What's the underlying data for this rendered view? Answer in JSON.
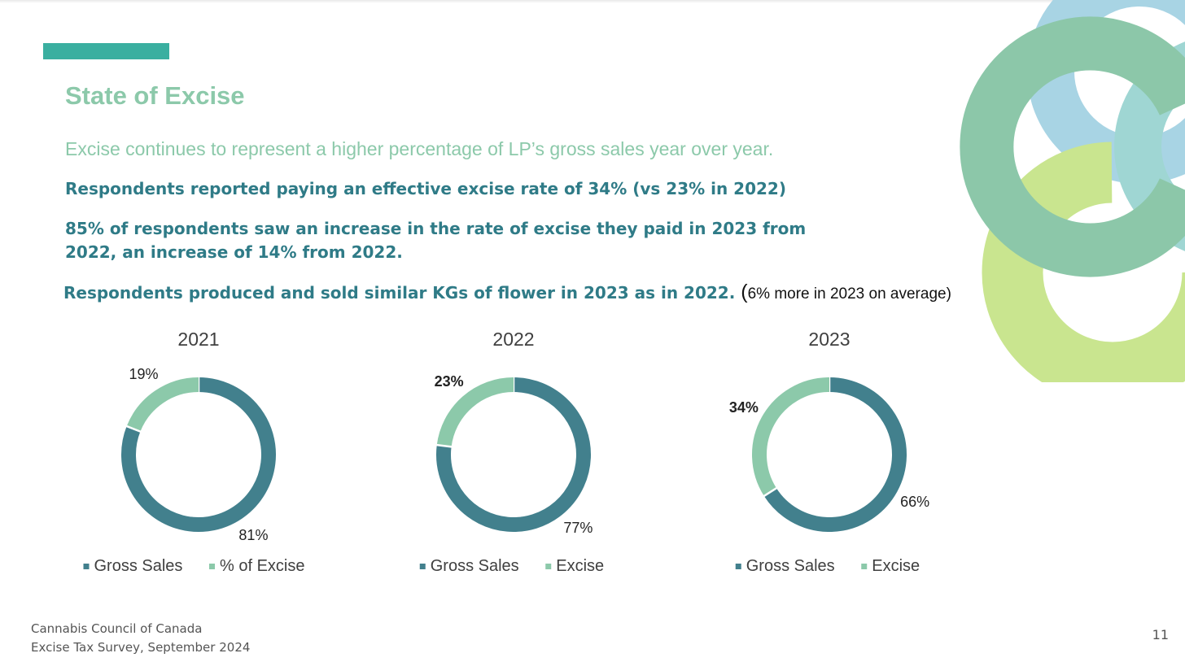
{
  "slide": {
    "title": "State of Excise",
    "subtitle": "Excise continues to represent a higher percentage of LP’s gross sales year over year.",
    "bullet1": "Respondents reported paying an effective excise rate of 34% (vs 23% in 2022)",
    "bullet2": "85% of respondents saw an increase in the rate of excise they paid in 2023 from 2022, an increase of 14% from 2022.",
    "bullet3": "Respondents produced and sold similar KGs of flower in 2023 as in 2022.",
    "bullet3_paren_open": "(",
    "bullet3_note": "6% more in 2023 on average)",
    "footer_line1": "Cannabis Council of Canada",
    "footer_line2": "Excise Tax Survey, September 2024",
    "page_number": "11"
  },
  "colors": {
    "gross_sales": "#42808d",
    "excise": "#8cc9aa",
    "title": "#8cc9aa",
    "body_text": "#2f7b87",
    "accent_bar": "#3aafa0",
    "logo_green": "#8cc7a9",
    "logo_blue": "#a8d4e4",
    "logo_lime": "#c9e58f",
    "logo_teal": "#9fd6d3"
  },
  "chart_data": [
    {
      "type": "pie",
      "variant": "donut",
      "title": "2021",
      "labels": [
        "Gross Sales",
        "% of Excise"
      ],
      "values": [
        81,
        19
      ],
      "value_labels": [
        "81%",
        "19%"
      ],
      "label_bold": false,
      "legend_position": "bottom"
    },
    {
      "type": "pie",
      "variant": "donut",
      "title": "2022",
      "labels": [
        "Gross Sales",
        "Excise"
      ],
      "values": [
        77,
        23
      ],
      "value_labels": [
        "77%",
        "23%"
      ],
      "label_bold": true,
      "legend_position": "bottom"
    },
    {
      "type": "pie",
      "variant": "donut",
      "title": "2023",
      "labels": [
        "Gross Sales",
        "Excise"
      ],
      "values": [
        66,
        34
      ],
      "value_labels": [
        "66%",
        "34%"
      ],
      "label_bold": true,
      "legend_position": "bottom"
    }
  ]
}
